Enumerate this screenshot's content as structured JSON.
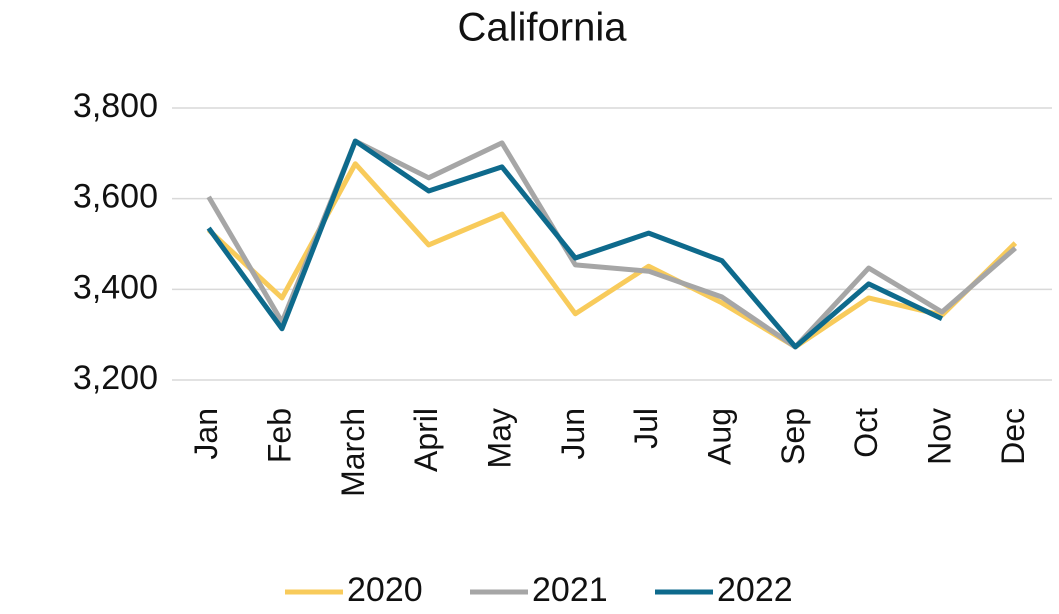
{
  "chart_data": {
    "type": "line",
    "title": "California",
    "categories": [
      "Jan",
      "Feb",
      "March",
      "April",
      "May",
      "Jun",
      "Jul",
      "Aug",
      "Sep",
      "Oct",
      "Nov",
      "Dec"
    ],
    "series": [
      {
        "name": "2020",
        "color": "#f8cb5b",
        "values": [
          3531,
          3381,
          3677,
          3498,
          3566,
          3346,
          3451,
          3370,
          3273,
          3381,
          3343,
          3502
        ]
      },
      {
        "name": "2021",
        "color": "#a6a6a6",
        "values": [
          3604,
          3328,
          3727,
          3646,
          3723,
          3454,
          3440,
          3383,
          3273,
          3447,
          3350,
          3491
        ]
      },
      {
        "name": "2022",
        "color": "#0e6a8c",
        "values": [
          3535,
          3313,
          3727,
          3617,
          3670,
          3469,
          3524,
          3463,
          3273,
          3412,
          3335,
          null
        ]
      }
    ],
    "ylim": [
      3200,
      3800
    ],
    "yticks": [
      {
        "value": 3200,
        "label": "3,200"
      },
      {
        "value": 3400,
        "label": "3,400"
      },
      {
        "value": 3600,
        "label": "3,600"
      },
      {
        "value": 3800,
        "label": "3,800"
      }
    ],
    "grid": true,
    "legend": "bottom"
  }
}
